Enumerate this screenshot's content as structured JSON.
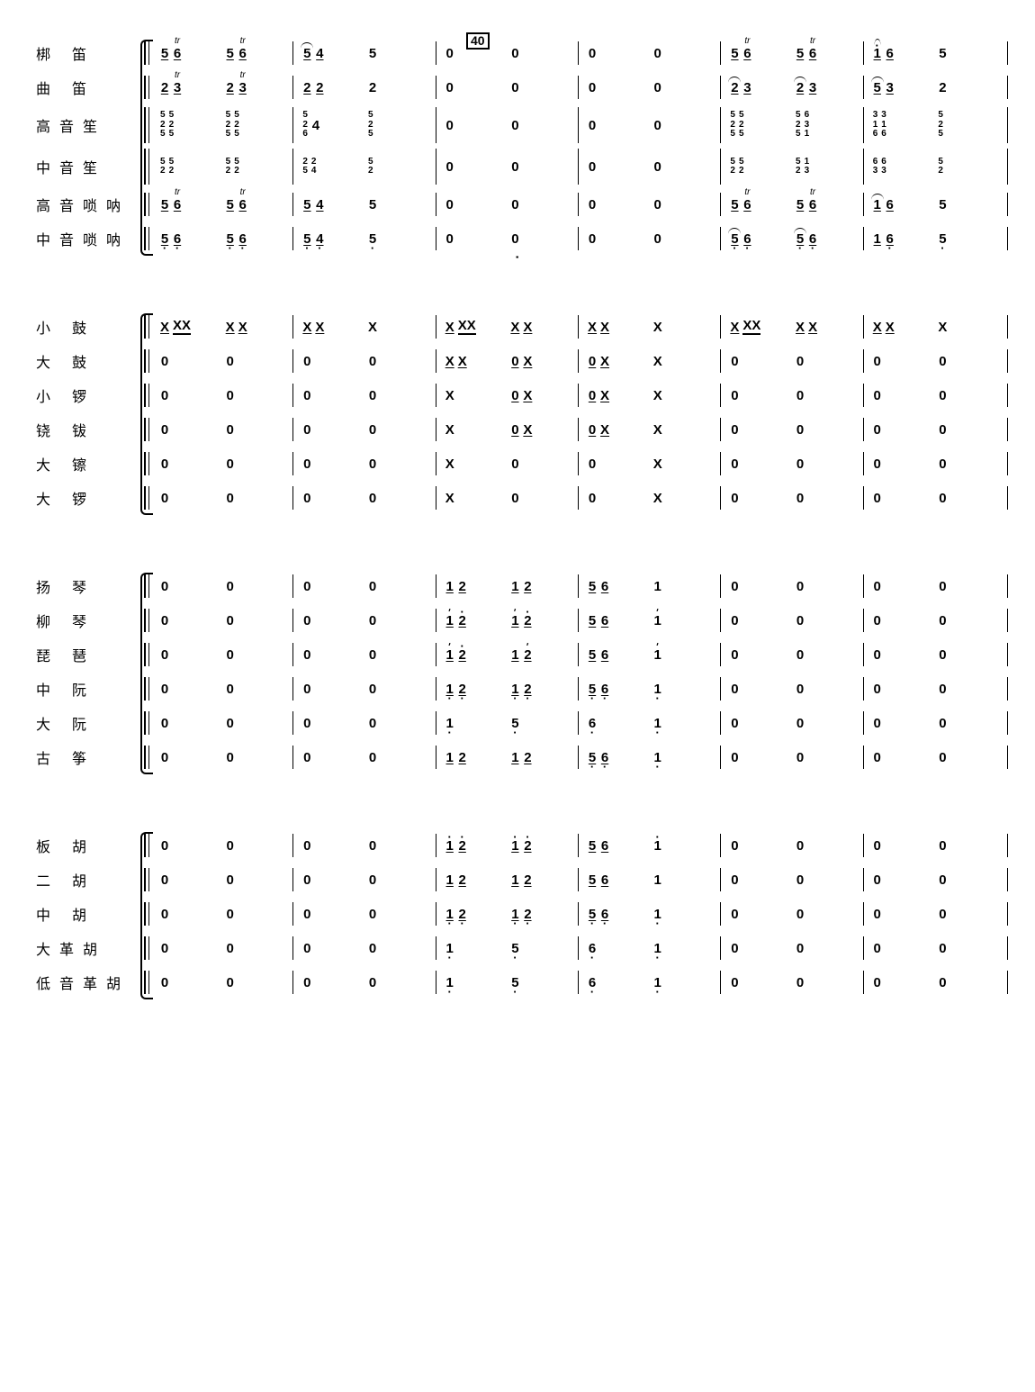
{
  "rehearsal_mark": "40",
  "sections": [
    {
      "instruments": [
        "梆 笛",
        "曲 笛",
        "高音笙",
        "中音笙",
        "高音唢呐",
        "中音唢呐"
      ],
      "tall_rows": [
        2,
        3
      ],
      "bars": [
        [
          [
            [
              "5 ul",
              "6 ul tr"
            ],
            [
              "5 ul",
              "6 ul tr"
            ]
          ],
          [
            [
              "2 ul",
              "3 ul tr"
            ],
            [
              "2 ul",
              "3 ul tr"
            ]
          ],
          [
            [
              "525 stack",
              "525 stack"
            ],
            [
              "525 stack",
              "525 stack"
            ]
          ],
          [
            [
              "52 stack ld",
              "52 stack ld"
            ],
            [
              "52 stack ld",
              "52 stack ld"
            ]
          ],
          [
            [
              "5 ul",
              "6 ul tr"
            ],
            [
              "5 ul",
              "6 ul tr"
            ]
          ],
          [
            [
              "5 ul ld",
              "6 ul ld"
            ],
            [
              "5 ul ld",
              "6 ul ld"
            ]
          ]
        ],
        [
          [
            [
              "5 ul ol",
              "4 ul"
            ],
            [
              "5"
            ]
          ],
          [
            [
              "2 ul",
              "2 ul"
            ],
            [
              "2"
            ]
          ],
          [
            [
              "526 stack",
              "4"
            ],
            [
              "525 stack"
            ]
          ],
          [
            [
              "25 stack",
              "24 stack"
            ],
            [
              "52 stack"
            ]
          ],
          [
            [
              "5 ul",
              "4 ul"
            ],
            [
              "5"
            ]
          ],
          [
            [
              "5 ul ld",
              "4 ul ld"
            ],
            [
              "5 ld"
            ]
          ]
        ],
        [
          [
            [
              "0"
            ],
            [
              "0"
            ]
          ],
          [
            [
              "0"
            ],
            [
              "0"
            ]
          ],
          [
            [
              "0"
            ],
            [
              "0"
            ]
          ],
          [
            [
              "0"
            ],
            [
              "0"
            ]
          ],
          [
            [
              "0"
            ],
            [
              "0"
            ]
          ],
          [
            [
              "0"
            ],
            [
              "0"
            ]
          ]
        ],
        [
          [
            [
              "0"
            ],
            [
              "0"
            ]
          ],
          [
            [
              "0"
            ],
            [
              "0"
            ]
          ],
          [
            [
              "0"
            ],
            [
              "0"
            ]
          ],
          [
            [
              "0"
            ],
            [
              "0"
            ]
          ],
          [
            [
              "0"
            ],
            [
              "0"
            ]
          ],
          [
            [
              "0"
            ],
            [
              "0"
            ]
          ]
        ],
        [
          [
            [
              "5 ul",
              "6 ul tr"
            ],
            [
              "5 ul",
              "6 ul tr"
            ]
          ],
          [
            [
              "2 ul ol",
              "3 ul"
            ],
            [
              "2 ul ol",
              "3 ul"
            ]
          ],
          [
            [
              "525 stack",
              "525 stack"
            ],
            [
              "525 stack",
              "631 stack"
            ]
          ],
          [
            [
              "52 stack ld",
              "52 stack ld"
            ],
            [
              "52 stack ld",
              "13 stack"
            ]
          ],
          [
            [
              "5 ul",
              "6 ul tr"
            ],
            [
              "5 ul",
              "6 ul tr"
            ]
          ],
          [
            [
              "5 ul ol ld",
              "6 ul ld"
            ],
            [
              "5 ul ol ld",
              "6 ul ld"
            ]
          ]
        ],
        [
          [
            [
              "1 ul hd ol",
              "6 ul"
            ],
            [
              "5"
            ]
          ],
          [
            [
              "5 ul ol",
              "3 ul"
            ],
            [
              "2"
            ]
          ],
          [
            [
              "316 stack",
              "316 stack"
            ],
            [
              "525 stack"
            ]
          ],
          [
            [
              "63 stack",
              "63 stack"
            ],
            [
              "52 stack"
            ]
          ],
          [
            [
              "1 ul ol",
              "6 ul"
            ],
            [
              "5"
            ]
          ],
          [
            [
              "1 ul",
              "6 ul ld"
            ],
            [
              "5 ld"
            ]
          ]
        ]
      ]
    },
    {
      "instruments": [
        "小 鼓",
        "大 鼓",
        "小 锣",
        "铙 钹",
        "大 镲",
        "大 锣"
      ],
      "tall_rows": [],
      "bars": [
        [
          [
            [
              "X ul",
              "XX uul"
            ],
            [
              "X ul",
              "X ul"
            ]
          ],
          [
            [
              "0"
            ],
            [
              "0"
            ]
          ],
          [
            [
              "0"
            ],
            [
              "0"
            ]
          ],
          [
            [
              "0"
            ],
            [
              "0"
            ]
          ],
          [
            [
              "0"
            ],
            [
              "0"
            ]
          ],
          [
            [
              "0"
            ],
            [
              "0"
            ]
          ]
        ],
        [
          [
            [
              "X ul",
              "X ul"
            ],
            [
              "X"
            ]
          ],
          [
            [
              "0"
            ],
            [
              "0"
            ]
          ],
          [
            [
              "0"
            ],
            [
              "0"
            ]
          ],
          [
            [
              "0"
            ],
            [
              "0"
            ]
          ],
          [
            [
              "0"
            ],
            [
              "0"
            ]
          ],
          [
            [
              "0"
            ],
            [
              "0"
            ]
          ]
        ],
        [
          [
            [
              "X ul",
              "XX uul"
            ],
            [
              "X ul",
              "X ul"
            ]
          ],
          [
            [
              "X ul",
              "X ul"
            ],
            [
              "0 ul",
              "X ul"
            ]
          ],
          [
            [
              "X"
            ],
            [
              "0 ul",
              "X ul"
            ]
          ],
          [
            [
              "X"
            ],
            [
              "0 ul",
              "X ul"
            ]
          ],
          [
            [
              "X"
            ],
            [
              "0"
            ]
          ],
          [
            [
              "X"
            ],
            [
              "0"
            ]
          ]
        ],
        [
          [
            [
              "X ul",
              "X ul"
            ],
            [
              "X"
            ]
          ],
          [
            [
              "0 ul",
              "X ul"
            ],
            [
              "X"
            ]
          ],
          [
            [
              "0 ul",
              "X ul"
            ],
            [
              "X"
            ]
          ],
          [
            [
              "0 ul",
              "X ul"
            ],
            [
              "X"
            ]
          ],
          [
            [
              "0"
            ],
            [
              "X"
            ]
          ],
          [
            [
              "0"
            ],
            [
              "X"
            ]
          ]
        ],
        [
          [
            [
              "X ul",
              "XX uul"
            ],
            [
              "X ul",
              "X ul"
            ]
          ],
          [
            [
              "0"
            ],
            [
              "0"
            ]
          ],
          [
            [
              "0"
            ],
            [
              "0"
            ]
          ],
          [
            [
              "0"
            ],
            [
              "0"
            ]
          ],
          [
            [
              "0"
            ],
            [
              "0"
            ]
          ],
          [
            [
              "0"
            ],
            [
              "0"
            ]
          ]
        ],
        [
          [
            [
              "X ul",
              "X ul"
            ],
            [
              "X"
            ]
          ],
          [
            [
              "0"
            ],
            [
              "0"
            ]
          ],
          [
            [
              "0"
            ],
            [
              "0"
            ]
          ],
          [
            [
              "0"
            ],
            [
              "0"
            ]
          ],
          [
            [
              "0"
            ],
            [
              "0"
            ]
          ],
          [
            [
              "0"
            ],
            [
              "0"
            ]
          ]
        ]
      ]
    },
    {
      "instruments": [
        "扬 琴",
        "柳 琴",
        "琵 琶",
        "中 阮",
        "大 阮",
        "古 筝"
      ],
      "tall_rows": [],
      "bars": [
        [
          [
            [
              "0"
            ],
            [
              "0"
            ]
          ],
          [
            [
              "0"
            ],
            [
              "0"
            ]
          ],
          [
            [
              "0"
            ],
            [
              "0"
            ]
          ],
          [
            [
              "0"
            ],
            [
              "0"
            ]
          ],
          [
            [
              "0"
            ],
            [
              "0"
            ]
          ],
          [
            [
              "0"
            ],
            [
              "0"
            ]
          ]
        ],
        [
          [
            [
              "0"
            ],
            [
              "0"
            ]
          ],
          [
            [
              "0"
            ],
            [
              "0"
            ]
          ],
          [
            [
              "0"
            ],
            [
              "0"
            ]
          ],
          [
            [
              "0"
            ],
            [
              "0"
            ]
          ],
          [
            [
              "0"
            ],
            [
              "0"
            ]
          ],
          [
            [
              "0"
            ],
            [
              "0"
            ]
          ]
        ],
        [
          [
            [
              "1 ul",
              "2 ul"
            ],
            [
              "1 ul",
              "2 ul"
            ]
          ],
          [
            [
              "1 ul hd tick",
              "2 ul hd"
            ],
            [
              "1 ul hd tick",
              "2 ul hd"
            ]
          ],
          [
            [
              "1 ul tick",
              "2 ul hd"
            ],
            [
              "1 ul",
              "2 ul hd tick"
            ]
          ],
          [
            [
              "1 ul ld",
              "2 ul ld"
            ],
            [
              "1 ul ld",
              "2 ul ld"
            ]
          ],
          [
            [
              "1 ld"
            ],
            [
              "5 ld"
            ]
          ],
          [
            [
              "1 ul",
              "2 ul"
            ],
            [
              "1 ul",
              "2 ul"
            ]
          ]
        ],
        [
          [
            [
              "5 ul",
              "6 ul"
            ],
            [
              "1"
            ]
          ],
          [
            [
              "5 ul",
              "6 ul"
            ],
            [
              "1 hd tick"
            ]
          ],
          [
            [
              "5 ul",
              "6 ul"
            ],
            [
              "1 hd tick"
            ]
          ],
          [
            [
              "5 ul ld",
              "6 ul ld"
            ],
            [
              "1 ld"
            ]
          ],
          [
            [
              "6 ld"
            ],
            [
              "1 ld"
            ]
          ],
          [
            [
              "5 ul ld",
              "6 ul ld"
            ],
            [
              "1 ld"
            ]
          ]
        ],
        [
          [
            [
              "0"
            ],
            [
              "0"
            ]
          ],
          [
            [
              "0"
            ],
            [
              "0"
            ]
          ],
          [
            [
              "0"
            ],
            [
              "0"
            ]
          ],
          [
            [
              "0"
            ],
            [
              "0"
            ]
          ],
          [
            [
              "0"
            ],
            [
              "0"
            ]
          ],
          [
            [
              "0"
            ],
            [
              "0"
            ]
          ]
        ],
        [
          [
            [
              "0"
            ],
            [
              "0"
            ]
          ],
          [
            [
              "0"
            ],
            [
              "0"
            ]
          ],
          [
            [
              "0"
            ],
            [
              "0"
            ]
          ],
          [
            [
              "0"
            ],
            [
              "0"
            ]
          ],
          [
            [
              "0"
            ],
            [
              "0"
            ]
          ],
          [
            [
              "0"
            ],
            [
              "0"
            ]
          ]
        ]
      ]
    },
    {
      "instruments": [
        "板 胡",
        "二 胡",
        "中 胡",
        "大革胡",
        "低音革胡"
      ],
      "tall_rows": [],
      "bars": [
        [
          [
            [
              "0"
            ],
            [
              "0"
            ]
          ],
          [
            [
              "0"
            ],
            [
              "0"
            ]
          ],
          [
            [
              "0"
            ],
            [
              "0"
            ]
          ],
          [
            [
              "0"
            ],
            [
              "0"
            ]
          ],
          [
            [
              "0"
            ],
            [
              "0"
            ]
          ]
        ],
        [
          [
            [
              "0"
            ],
            [
              "0"
            ]
          ],
          [
            [
              "0"
            ],
            [
              "0"
            ]
          ],
          [
            [
              "0"
            ],
            [
              "0"
            ]
          ],
          [
            [
              "0"
            ],
            [
              "0"
            ]
          ],
          [
            [
              "0"
            ],
            [
              "0"
            ]
          ]
        ],
        [
          [
            [
              "1 ul hd",
              "2 ul hd"
            ],
            [
              "1 ul hd",
              "2 ul hd"
            ]
          ],
          [
            [
              "1 ul",
              "2 ul"
            ],
            [
              "1 ul",
              "2 ul"
            ]
          ],
          [
            [
              "1 ul ld",
              "2 ul ld"
            ],
            [
              "1 ul ld",
              "2 ul ld"
            ]
          ],
          [
            [
              "1 ld"
            ],
            [
              "5 ld"
            ]
          ],
          [
            [
              "1 ld"
            ],
            [
              "5 ld"
            ]
          ]
        ],
        [
          [
            [
              "5 ul",
              "6 ul"
            ],
            [
              "1 hd"
            ]
          ],
          [
            [
              "5 ul",
              "6 ul"
            ],
            [
              "1"
            ]
          ],
          [
            [
              "5 ul ld",
              "6 ul ld"
            ],
            [
              "1 ld"
            ]
          ],
          [
            [
              "6 ld"
            ],
            [
              "1 ld"
            ]
          ],
          [
            [
              "6 ld"
            ],
            [
              "1 ld"
            ]
          ]
        ],
        [
          [
            [
              "0"
            ],
            [
              "0"
            ]
          ],
          [
            [
              "0"
            ],
            [
              "0"
            ]
          ],
          [
            [
              "0"
            ],
            [
              "0"
            ]
          ],
          [
            [
              "0"
            ],
            [
              "0"
            ]
          ],
          [
            [
              "0"
            ],
            [
              "0"
            ]
          ]
        ],
        [
          [
            [
              "0"
            ],
            [
              "0"
            ]
          ],
          [
            [
              "0"
            ],
            [
              "0"
            ]
          ],
          [
            [
              "0"
            ],
            [
              "0"
            ]
          ],
          [
            [
              "0"
            ],
            [
              "0"
            ]
          ],
          [
            [
              "0"
            ],
            [
              "0"
            ]
          ]
        ]
      ]
    }
  ]
}
